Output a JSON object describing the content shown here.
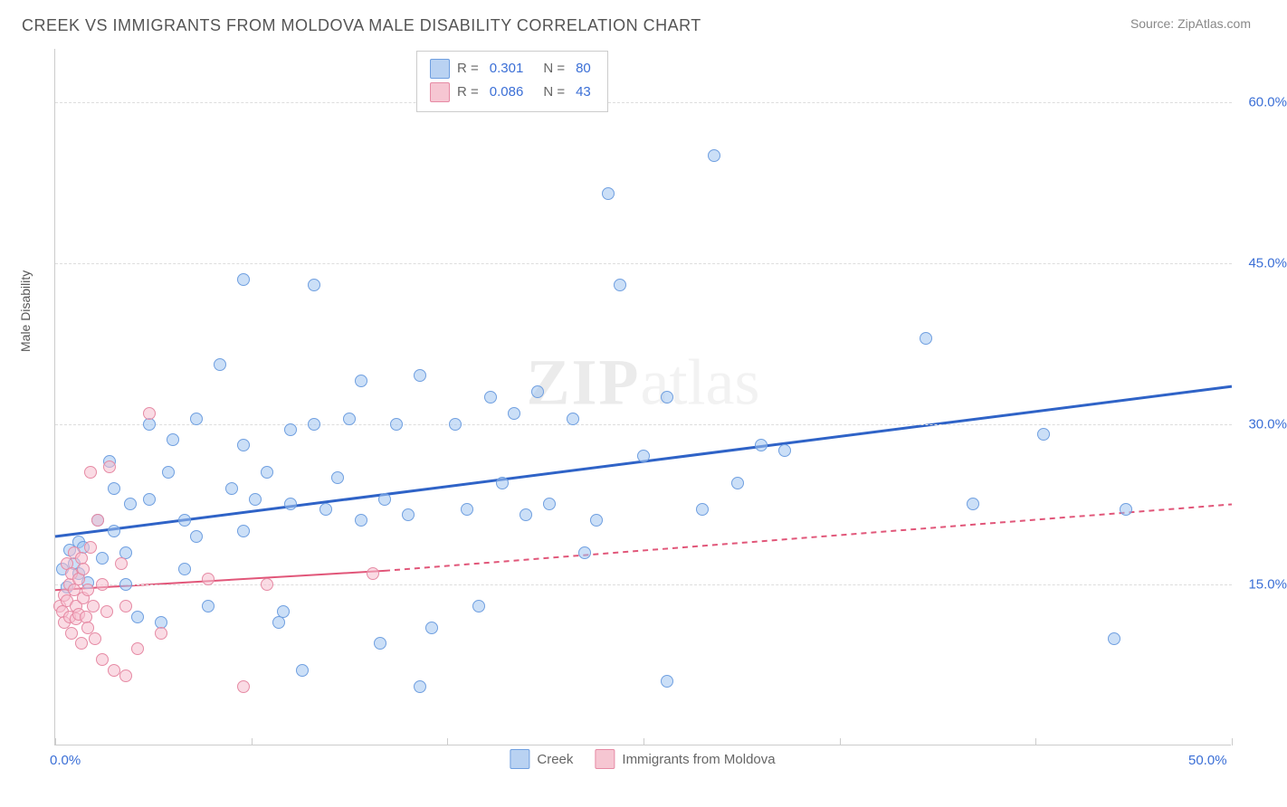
{
  "header": {
    "title": "CREEK VS IMMIGRANTS FROM MOLDOVA MALE DISABILITY CORRELATION CHART",
    "source": "Source: ZipAtlas.com"
  },
  "watermark": {
    "zip": "ZIP",
    "atlas": "atlas"
  },
  "chart": {
    "type": "scatter",
    "y_axis_title": "Male Disability",
    "xlim": [
      0,
      50
    ],
    "ylim": [
      0,
      65
    ],
    "x_ticks": [
      0,
      8.33,
      16.67,
      25,
      33.33,
      41.67,
      50
    ],
    "x_tick_labels": {
      "0": "0.0%",
      "50": "50.0%"
    },
    "y_gridlines": [
      15,
      30,
      45,
      60
    ],
    "y_tick_labels": {
      "15": "15.0%",
      "30": "30.0%",
      "45": "45.0%",
      "60": "60.0%"
    },
    "grid_color": "#dddddd",
    "background_color": "#ffffff",
    "label_color": "#3b6fd6",
    "axis_title_color": "#555555",
    "title_fontsize": 18,
    "label_fontsize": 15
  },
  "legend_top": {
    "rows": [
      {
        "r_label": "R  =",
        "r_value": "0.301",
        "n_label": "N  =",
        "n_value": "80",
        "swatch_fill": "#b9d2f2",
        "swatch_border": "#6f9fe0"
      },
      {
        "r_label": "R  =",
        "r_value": "0.086",
        "n_label": "N  =",
        "n_value": "43",
        "swatch_fill": "#f6c6d2",
        "swatch_border": "#e68aa4"
      }
    ]
  },
  "legend_bottom": {
    "items": [
      {
        "label": "Creek",
        "swatch_fill": "#b9d2f2",
        "swatch_border": "#6f9fe0"
      },
      {
        "label": "Immigrants from Moldova",
        "swatch_fill": "#f6c6d2",
        "swatch_border": "#e68aa4"
      }
    ]
  },
  "series": [
    {
      "name": "Creek",
      "point_fill": "rgba(160,197,240,0.55)",
      "point_stroke": "#6f9fe0",
      "trend": {
        "color": "#2f63c7",
        "width": 3,
        "segments": [
          {
            "x1": 0,
            "y1": 19.5,
            "x2": 50,
            "y2": 33.5,
            "dash": "none"
          }
        ]
      },
      "points": [
        [
          0.3,
          16.5
        ],
        [
          0.5,
          14.8
        ],
        [
          0.6,
          18.2
        ],
        [
          0.8,
          17.0
        ],
        [
          1.0,
          16.0
        ],
        [
          1.0,
          19.0
        ],
        [
          1.2,
          18.5
        ],
        [
          1.4,
          15.2
        ],
        [
          1.8,
          21.0
        ],
        [
          2.0,
          17.5
        ],
        [
          2.3,
          26.5
        ],
        [
          2.5,
          20.0
        ],
        [
          2.5,
          24.0
        ],
        [
          3.0,
          15.0
        ],
        [
          3.0,
          18.0
        ],
        [
          3.2,
          22.5
        ],
        [
          3.5,
          12.0
        ],
        [
          4.0,
          23.0
        ],
        [
          4.0,
          30.0
        ],
        [
          4.5,
          11.5
        ],
        [
          4.8,
          25.5
        ],
        [
          5.0,
          28.5
        ],
        [
          5.5,
          16.5
        ],
        [
          5.5,
          21.0
        ],
        [
          6.0,
          19.5
        ],
        [
          6.0,
          30.5
        ],
        [
          6.5,
          13.0
        ],
        [
          7.0,
          35.5
        ],
        [
          7.5,
          24.0
        ],
        [
          8.0,
          28.0
        ],
        [
          8.0,
          20.0
        ],
        [
          8.0,
          43.5
        ],
        [
          8.5,
          23.0
        ],
        [
          9.0,
          25.5
        ],
        [
          9.5,
          11.5
        ],
        [
          9.7,
          12.5
        ],
        [
          10.0,
          29.5
        ],
        [
          10.0,
          22.5
        ],
        [
          10.5,
          7.0
        ],
        [
          11.0,
          30.0
        ],
        [
          11.5,
          22.0
        ],
        [
          12.0,
          25.0
        ],
        [
          12.5,
          30.5
        ],
        [
          13.0,
          21.0
        ],
        [
          13.0,
          34.0
        ],
        [
          13.8,
          9.5
        ],
        [
          14.0,
          23.0
        ],
        [
          14.5,
          30.0
        ],
        [
          15.0,
          21.5
        ],
        [
          15.5,
          5.5
        ],
        [
          15.5,
          34.5
        ],
        [
          16.0,
          11.0
        ],
        [
          17.0,
          30.0
        ],
        [
          17.5,
          22.0
        ],
        [
          18.0,
          13.0
        ],
        [
          18.5,
          32.5
        ],
        [
          19.0,
          24.5
        ],
        [
          19.5,
          31.0
        ],
        [
          20.0,
          21.5
        ],
        [
          20.5,
          33.0
        ],
        [
          21.0,
          22.5
        ],
        [
          22.0,
          30.5
        ],
        [
          22.5,
          18.0
        ],
        [
          23.0,
          21.0
        ],
        [
          23.5,
          51.5
        ],
        [
          24.0,
          43.0
        ],
        [
          25.0,
          27.0
        ],
        [
          26.0,
          6.0
        ],
        [
          26.0,
          32.5
        ],
        [
          27.5,
          22.0
        ],
        [
          28.0,
          55.0
        ],
        [
          29.0,
          24.5
        ],
        [
          30.0,
          28.0
        ],
        [
          31.0,
          27.5
        ],
        [
          37.0,
          38.0
        ],
        [
          39.0,
          22.5
        ],
        [
          42.0,
          29.0
        ],
        [
          45.0,
          10.0
        ],
        [
          45.5,
          22.0
        ],
        [
          11.0,
          43.0
        ]
      ]
    },
    {
      "name": "Immigrants from Moldova",
      "point_fill": "rgba(246,190,205,0.55)",
      "point_stroke": "#e68aa4",
      "trend": {
        "color": "#e15679",
        "width": 2,
        "segments": [
          {
            "x1": 0,
            "y1": 14.5,
            "x2": 14,
            "y2": 16.3,
            "dash": "none"
          },
          {
            "x1": 14,
            "y1": 16.3,
            "x2": 50,
            "y2": 22.5,
            "dash": "6,5"
          }
        ]
      },
      "points": [
        [
          0.2,
          13.0
        ],
        [
          0.3,
          12.5
        ],
        [
          0.4,
          14.0
        ],
        [
          0.4,
          11.5
        ],
        [
          0.5,
          17.0
        ],
        [
          0.5,
          13.5
        ],
        [
          0.6,
          15.0
        ],
        [
          0.6,
          12.0
        ],
        [
          0.7,
          16.0
        ],
        [
          0.7,
          10.5
        ],
        [
          0.8,
          14.5
        ],
        [
          0.8,
          18.0
        ],
        [
          0.9,
          13.0
        ],
        [
          0.9,
          11.8
        ],
        [
          1.0,
          12.2
        ],
        [
          1.0,
          15.5
        ],
        [
          1.1,
          9.5
        ],
        [
          1.1,
          17.5
        ],
        [
          1.2,
          13.8
        ],
        [
          1.2,
          16.5
        ],
        [
          1.3,
          12.0
        ],
        [
          1.4,
          14.5
        ],
        [
          1.4,
          11.0
        ],
        [
          1.5,
          18.5
        ],
        [
          1.5,
          25.5
        ],
        [
          1.6,
          13.0
        ],
        [
          1.7,
          10.0
        ],
        [
          1.8,
          21.0
        ],
        [
          2.0,
          8.0
        ],
        [
          2.0,
          15.0
        ],
        [
          2.2,
          12.5
        ],
        [
          2.3,
          26.0
        ],
        [
          2.5,
          7.0
        ],
        [
          2.8,
          17.0
        ],
        [
          3.0,
          6.5
        ],
        [
          3.0,
          13.0
        ],
        [
          3.5,
          9.0
        ],
        [
          4.0,
          31.0
        ],
        [
          4.5,
          10.5
        ],
        [
          6.5,
          15.5
        ],
        [
          8.0,
          5.5
        ],
        [
          9.0,
          15.0
        ],
        [
          13.5,
          16.0
        ]
      ]
    }
  ]
}
